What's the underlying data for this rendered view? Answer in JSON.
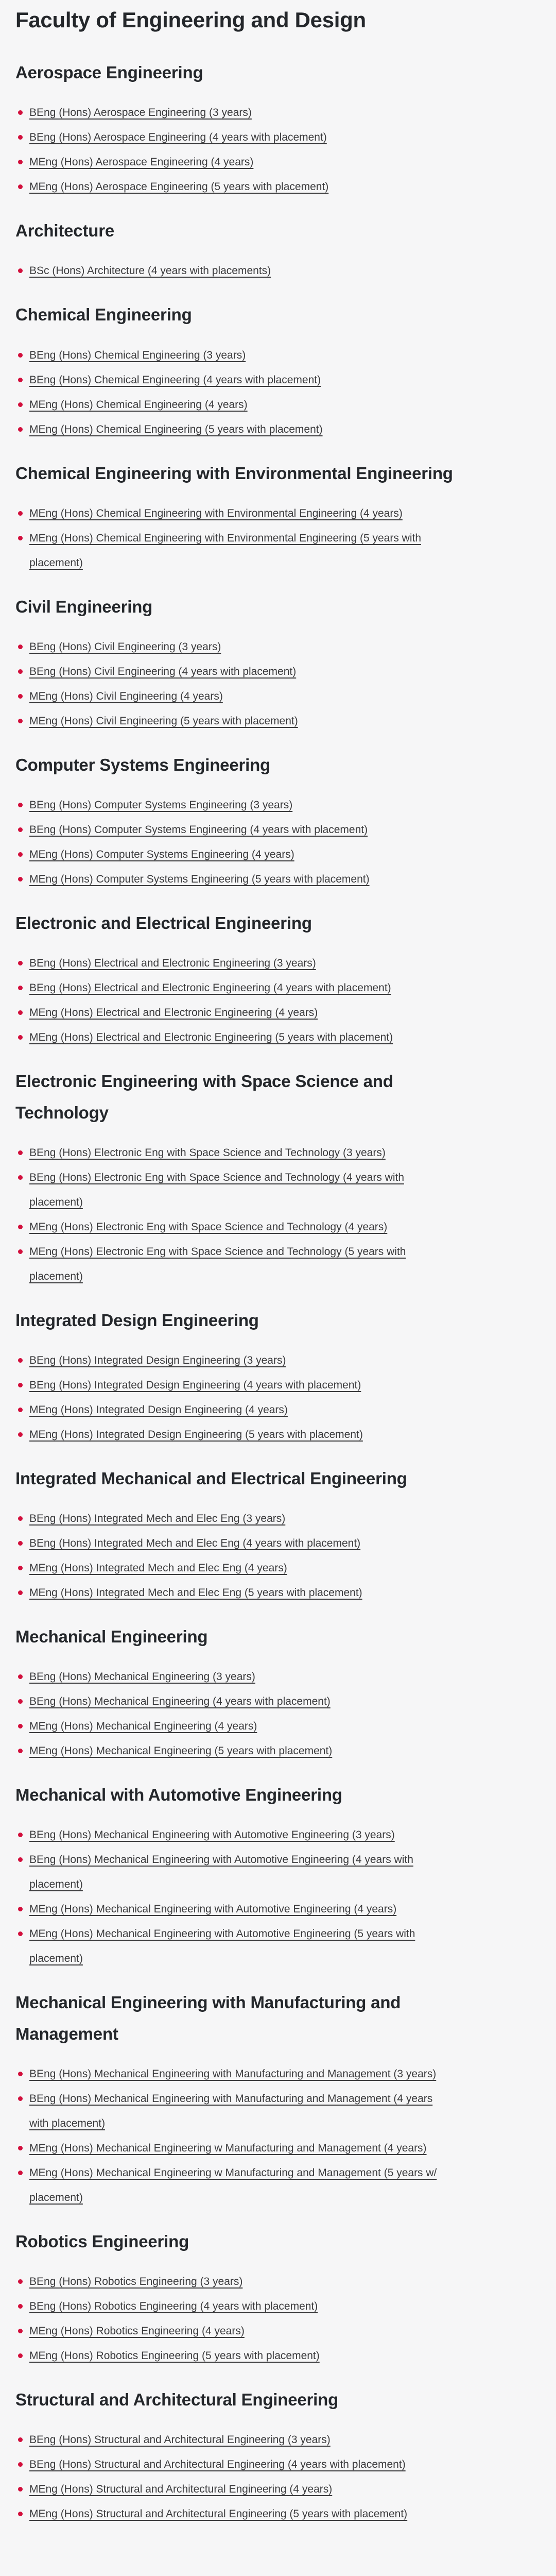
{
  "page": {
    "title": "Faculty of Engineering and Design",
    "background_color": "#f6f6f7",
    "heading_color": "#24272b",
    "link_color": "#3a3a3c",
    "bullet_color": "#d20f3c"
  },
  "sections": [
    {
      "heading": "Aerospace Engineering",
      "programmes": [
        "BEng (Hons) Aerospace Engineering (3 years)",
        "BEng (Hons) Aerospace Engineering (4 years with placement)",
        "MEng (Hons) Aerospace Engineering (4 years)",
        "MEng (Hons) Aerospace Engineering (5 years with placement)"
      ]
    },
    {
      "heading": "Architecture",
      "programmes": [
        "BSc (Hons) Architecture (4 years with placements)"
      ]
    },
    {
      "heading": "Chemical Engineering",
      "programmes": [
        "BEng (Hons) Chemical Engineering (3 years)",
        "BEng (Hons) Chemical Engineering (4 years with placement)",
        "MEng (Hons) Chemical Engineering (4 years)",
        "MEng (Hons) Chemical Engineering (5 years with placement)"
      ]
    },
    {
      "heading": "Chemical Engineering with Environmental Engineering",
      "programmes": [
        "MEng (Hons) Chemical Engineering with Environmental Engineering (4 years)",
        "MEng (Hons) Chemical Engineering with Environmental Engineering (5 years with placement)"
      ]
    },
    {
      "heading": "Civil Engineering",
      "programmes": [
        "BEng (Hons) Civil Engineering (3 years)",
        "BEng (Hons) Civil Engineering (4 years with placement)",
        "MEng (Hons) Civil Engineering (4 years)",
        "MEng (Hons) Civil Engineering (5 years with placement)"
      ]
    },
    {
      "heading": "Computer Systems Engineering",
      "programmes": [
        "BEng (Hons) Computer Systems Engineering (3 years)",
        "BEng (Hons) Computer Systems Engineering (4 years with placement)",
        "MEng (Hons) Computer Systems Engineering (4 years)",
        "MEng (Hons) Computer Systems Engineering (5 years with placement)"
      ]
    },
    {
      "heading": "Electronic and Electrical Engineering",
      "programmes": [
        "BEng (Hons) Electrical and Electronic Engineering (3 years)",
        "BEng (Hons) Electrical and Electronic Engineering (4 years with placement)",
        "MEng (Hons) Electrical and Electronic Engineering (4 years)",
        "MEng (Hons) Electrical and Electronic Engineering (5 years with placement)"
      ]
    },
    {
      "heading": "Electronic Engineering with Space Science and Technology",
      "programmes": [
        "BEng (Hons) Electronic Eng with Space Science and Technology (3 years)",
        "BEng (Hons) Electronic Eng with Space Science and Technology (4 years with placement)",
        "MEng (Hons) Electronic Eng with Space Science and Technology (4 years)",
        "MEng (Hons) Electronic Eng with Space Science and Technology (5 years with placement)"
      ]
    },
    {
      "heading": "Integrated Design Engineering",
      "programmes": [
        "BEng (Hons) Integrated Design Engineering (3 years)",
        "BEng (Hons) Integrated Design Engineering (4 years with placement)",
        "MEng (Hons) Integrated Design Engineering (4 years)",
        "MEng (Hons) Integrated Design Engineering (5 years with placement)"
      ]
    },
    {
      "heading": "Integrated Mechanical and Electrical Engineering",
      "programmes": [
        "BEng (Hons) Integrated Mech and Elec Eng (3 years)",
        "BEng (Hons) Integrated Mech and Elec Eng (4 years with placement)",
        "MEng (Hons) Integrated Mech and Elec Eng (4 years)",
        "MEng (Hons) Integrated Mech and Elec Eng (5 years with placement)"
      ]
    },
    {
      "heading": "Mechanical Engineering",
      "programmes": [
        "BEng (Hons) Mechanical Engineering (3 years)",
        "BEng (Hons) Mechanical Engineering (4 years with placement)",
        "MEng (Hons) Mechanical Engineering (4 years)",
        "MEng (Hons) Mechanical Engineering (5 years with placement)"
      ]
    },
    {
      "heading": "Mechanical with Automotive Engineering",
      "programmes": [
        "BEng (Hons) Mechanical Engineering with Automotive Engineering (3 years)",
        "BEng (Hons) Mechanical Engineering with Automotive Engineering (4 years with placement)",
        "MEng (Hons) Mechanical Engineering with Automotive Engineering (4 years)",
        "MEng (Hons) Mechanical Engineering with Automotive Engineering (5 years with placement)"
      ]
    },
    {
      "heading": "Mechanical Engineering with Manufacturing and Management",
      "programmes": [
        "BEng (Hons) Mechanical Engineering with Manufacturing and Management (3 years)",
        "BEng (Hons) Mechanical Engineering with Manufacturing and Management (4 years with placement)",
        "MEng (Hons) Mechanical Engineering w Manufacturing and Management (4 years)",
        "MEng (Hons) Mechanical Engineering w Manufacturing and Management (5 years w/ placement)"
      ]
    },
    {
      "heading": "Robotics Engineering",
      "programmes": [
        "BEng (Hons) Robotics Engineering (3 years)",
        "BEng (Hons) Robotics Engineering (4 years with placement)",
        "MEng (Hons) Robotics Engineering (4 years)",
        "MEng (Hons) Robotics Engineering (5 years with placement)"
      ]
    },
    {
      "heading": "Structural and Architectural Engineering",
      "programmes": [
        "BEng (Hons) Structural and Architectural Engineering (3 years)",
        "BEng (Hons) Structural and Architectural Engineering (4 years with placement)",
        "MEng (Hons) Structural and Architectural Engineering (4 years)",
        "MEng (Hons) Structural and Architectural Engineering (5 years with placement)"
      ]
    }
  ]
}
